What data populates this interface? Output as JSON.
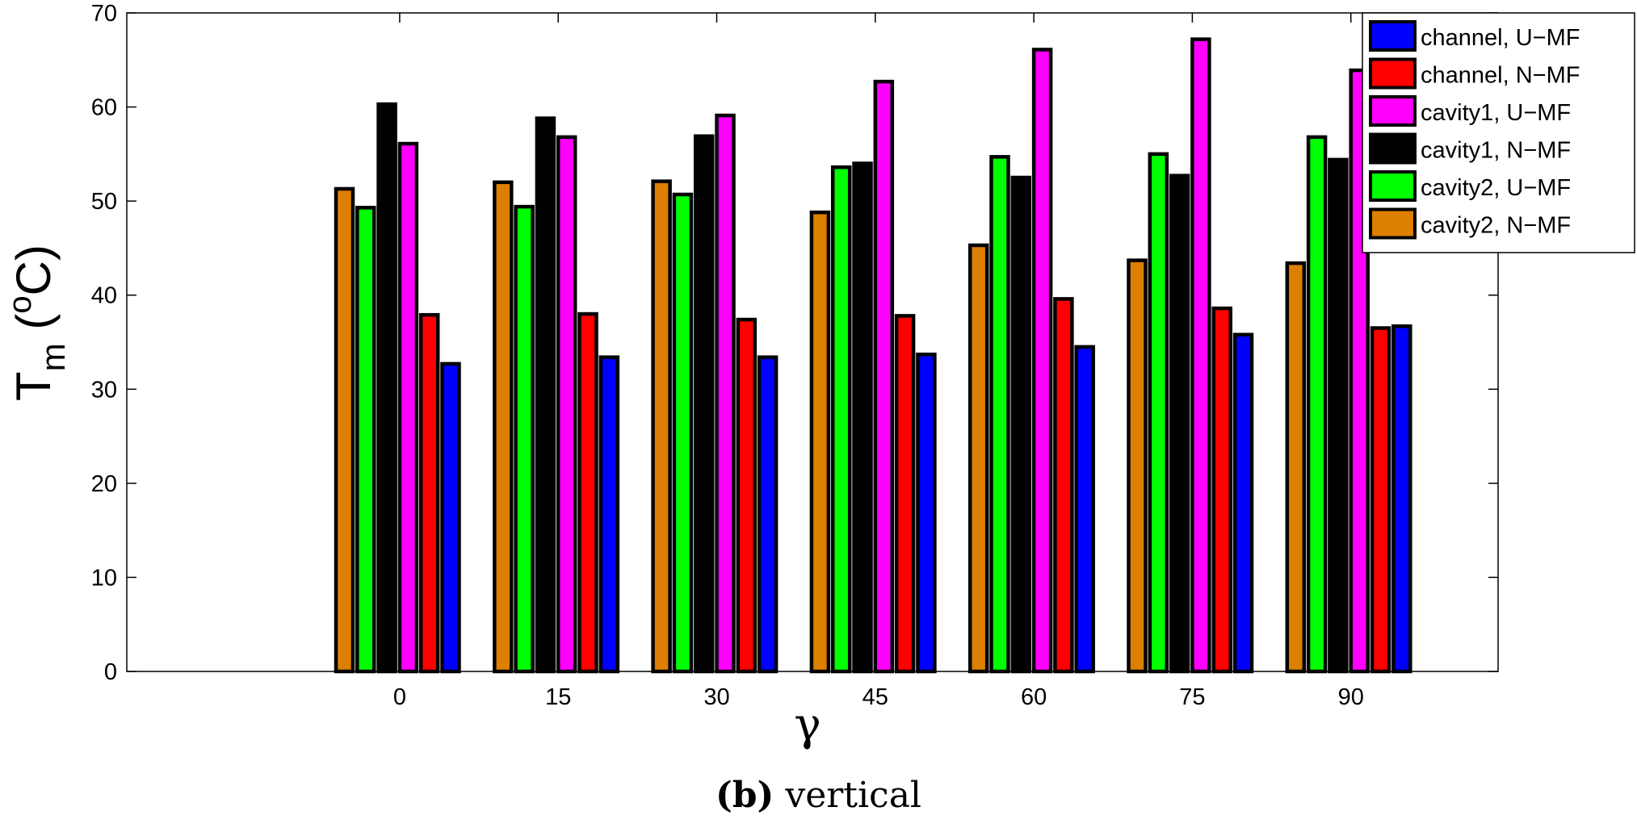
{
  "chart_data": {
    "type": "bar",
    "title": "",
    "xlabel": "γ",
    "ylabel": "T_m (°C)",
    "ylabel_parts": {
      "main": "T",
      "sub": "m",
      "open": " (",
      "sup": "o",
      "unit": "C)"
    },
    "ylim": [
      0,
      70
    ],
    "yticks": [
      0,
      10,
      20,
      30,
      40,
      50,
      60,
      70
    ],
    "categories": [
      "0",
      "15",
      "30",
      "45",
      "60",
      "75",
      "90"
    ],
    "series": [
      {
        "name": "cavity2, N−MF",
        "color": "#dd7f00",
        "values": [
          51.3,
          52.0,
          52.1,
          48.8,
          45.3,
          43.7,
          43.4
        ]
      },
      {
        "name": "cavity2, U−MF",
        "color": "#00ff00",
        "values": [
          49.3,
          49.4,
          50.7,
          53.6,
          54.7,
          55.0,
          56.8
        ]
      },
      {
        "name": "cavity1, N−MF",
        "color": "#000000",
        "values": [
          60.3,
          58.8,
          56.9,
          54.0,
          52.5,
          52.7,
          54.4
        ]
      },
      {
        "name": "cavity1, U−MF",
        "color": "#ff00ff",
        "values": [
          56.1,
          56.8,
          59.1,
          62.7,
          66.1,
          67.2,
          63.9
        ]
      },
      {
        "name": "channel, N−MF",
        "color": "#ff0000",
        "values": [
          37.9,
          38.0,
          37.4,
          37.8,
          39.6,
          38.6,
          36.5
        ]
      },
      {
        "name": "channel, U−MF",
        "color": "#0000ff",
        "values": [
          32.7,
          33.4,
          33.4,
          33.7,
          34.5,
          35.8,
          36.7
        ]
      }
    ],
    "legend_order": [
      5,
      4,
      3,
      2,
      1,
      0
    ],
    "legend_position": "top-right",
    "grid": false
  },
  "caption": {
    "label": "(b)",
    "text": "vertical"
  }
}
